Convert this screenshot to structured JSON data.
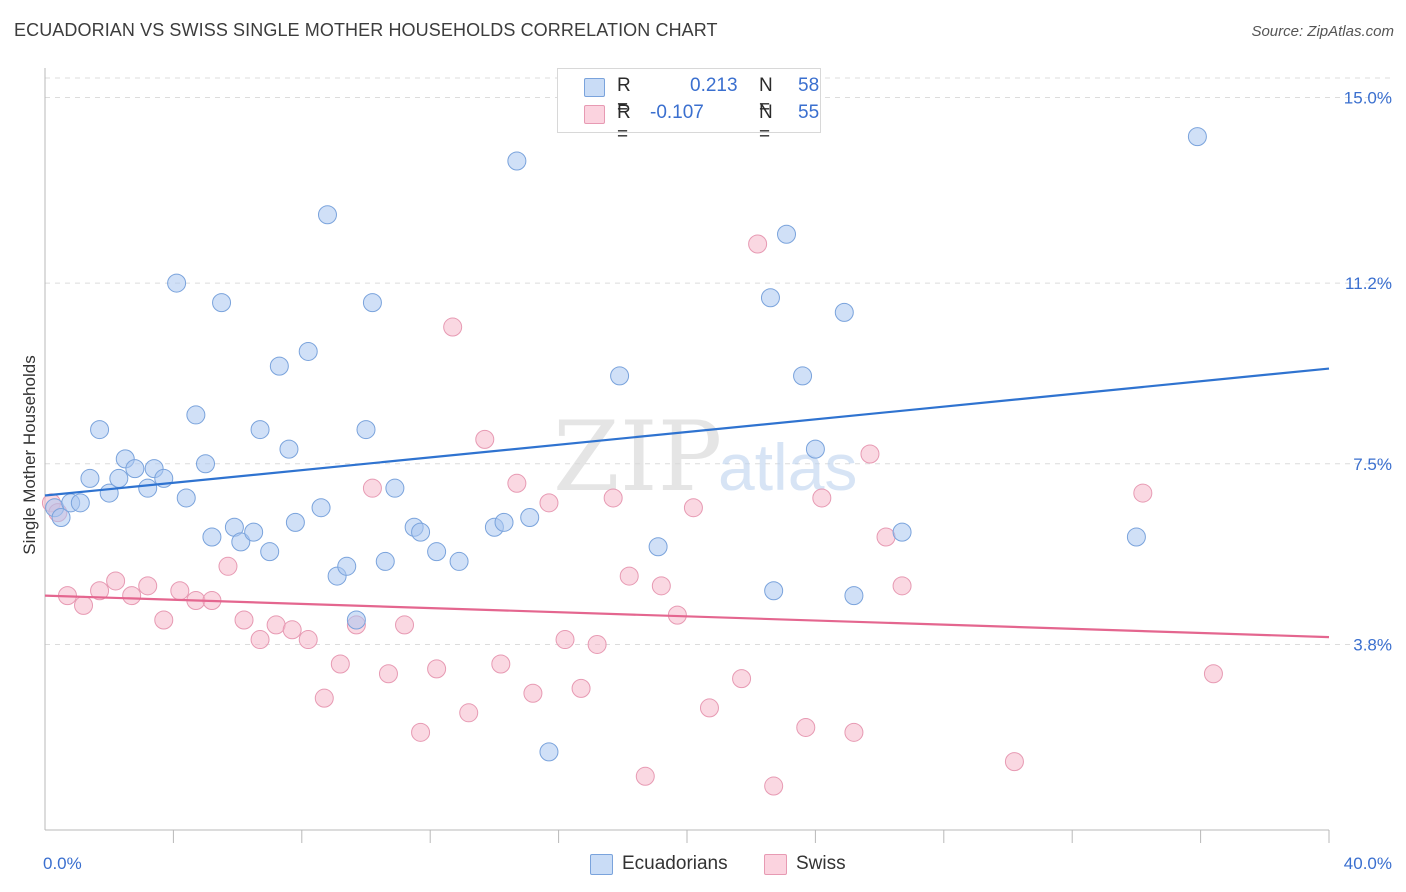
{
  "header": {
    "title": "ECUADORIAN VS SWISS SINGLE MOTHER HOUSEHOLDS CORRELATION CHART",
    "source": "Source: ZipAtlas.com"
  },
  "watermark": {
    "zip": "ZIP",
    "atlas": "atlas"
  },
  "legend": {
    "rows": [
      {
        "r_key": "R =",
        "r_val": "0.213",
        "n_key": "N =",
        "n_val": "58",
        "color": "#a9c6f0"
      },
      {
        "r_key": "R =",
        "r_val": "-0.107",
        "n_key": "N =",
        "n_val": "55",
        "color": "#f6b8cb"
      }
    ]
  },
  "bottom_legend": [
    {
      "label": "Ecuadorians",
      "color": "#a9c6f0"
    },
    {
      "label": "Swiss",
      "color": "#f6b8cb"
    }
  ],
  "colors": {
    "blue_fill": "#a9c6f0",
    "blue_stroke": "#7aa3dc",
    "blue_line": "#2f73d0",
    "pink_fill": "#f6b8cb",
    "pink_stroke": "#e79ab3",
    "pink_line": "#e4668f",
    "tick_text": "#3a6fcf",
    "grid": "#dcdcdc"
  },
  "chart_data": {
    "type": "scatter",
    "title": "ECUADORIAN VS SWISS SINGLE MOTHER HOUSEHOLDS CORRELATION CHART",
    "xlabel": "",
    "ylabel": "Single Mother Households",
    "xlim": [
      0,
      40
    ],
    "ylim": [
      0,
      15.4
    ],
    "x_tick_labels": [
      "0.0%",
      "40.0%"
    ],
    "y_ticks": [
      {
        "value": 3.8,
        "label": "3.8%"
      },
      {
        "value": 7.5,
        "label": "7.5%"
      },
      {
        "value": 11.2,
        "label": "11.2%"
      },
      {
        "value": 15.0,
        "label": "15.0%"
      }
    ],
    "series": [
      {
        "name": "Ecuadorians",
        "r": 0.213,
        "n": 58,
        "trend": {
          "x": [
            0,
            40
          ],
          "y": [
            6.85,
            9.45
          ]
        },
        "points": [
          [
            0.3,
            6.6
          ],
          [
            0.5,
            6.4
          ],
          [
            0.8,
            6.7
          ],
          [
            1.1,
            6.7
          ],
          [
            1.4,
            7.2
          ],
          [
            1.7,
            8.2
          ],
          [
            2.0,
            6.9
          ],
          [
            2.3,
            7.2
          ],
          [
            2.5,
            7.6
          ],
          [
            2.8,
            7.4
          ],
          [
            3.2,
            7.0
          ],
          [
            3.4,
            7.4
          ],
          [
            3.7,
            7.2
          ],
          [
            4.1,
            11.2
          ],
          [
            4.4,
            6.8
          ],
          [
            4.7,
            8.5
          ],
          [
            5.0,
            7.5
          ],
          [
            5.2,
            6.0
          ],
          [
            5.5,
            10.8
          ],
          [
            5.9,
            6.2
          ],
          [
            6.1,
            5.9
          ],
          [
            6.5,
            6.1
          ],
          [
            6.7,
            8.2
          ],
          [
            7.0,
            5.7
          ],
          [
            7.3,
            9.5
          ],
          [
            7.6,
            7.8
          ],
          [
            7.8,
            6.3
          ],
          [
            8.2,
            9.8
          ],
          [
            8.6,
            6.6
          ],
          [
            8.8,
            12.6
          ],
          [
            9.1,
            5.2
          ],
          [
            9.4,
            5.4
          ],
          [
            9.7,
            4.3
          ],
          [
            10.0,
            8.2
          ],
          [
            10.2,
            10.8
          ],
          [
            10.6,
            5.5
          ],
          [
            10.9,
            7.0
          ],
          [
            11.5,
            6.2
          ],
          [
            11.7,
            6.1
          ],
          [
            12.2,
            5.7
          ],
          [
            12.9,
            5.5
          ],
          [
            14.0,
            6.2
          ],
          [
            14.3,
            6.3
          ],
          [
            14.7,
            13.7
          ],
          [
            15.1,
            6.4
          ],
          [
            15.7,
            1.6
          ],
          [
            17.9,
            9.3
          ],
          [
            19.1,
            5.8
          ],
          [
            22.6,
            10.9
          ],
          [
            22.7,
            4.9
          ],
          [
            23.1,
            12.2
          ],
          [
            23.6,
            9.3
          ],
          [
            24.0,
            7.8
          ],
          [
            24.9,
            10.6
          ],
          [
            25.2,
            4.8
          ],
          [
            26.7,
            6.1
          ],
          [
            35.9,
            14.2
          ],
          [
            34.0,
            6.0
          ]
        ]
      },
      {
        "name": "Swiss",
        "r": -0.107,
        "n": 55,
        "trend": {
          "x": [
            0,
            40
          ],
          "y": [
            4.8,
            3.95
          ]
        },
        "points": [
          [
            0.2,
            6.7
          ],
          [
            0.4,
            6.5
          ],
          [
            0.7,
            4.8
          ],
          [
            1.2,
            4.6
          ],
          [
            1.7,
            4.9
          ],
          [
            2.2,
            5.1
          ],
          [
            2.7,
            4.8
          ],
          [
            3.2,
            5.0
          ],
          [
            3.7,
            4.3
          ],
          [
            4.2,
            4.9
          ],
          [
            4.7,
            4.7
          ],
          [
            5.2,
            4.7
          ],
          [
            5.7,
            5.4
          ],
          [
            6.2,
            4.3
          ],
          [
            6.7,
            3.9
          ],
          [
            7.2,
            4.2
          ],
          [
            7.7,
            4.1
          ],
          [
            8.2,
            3.9
          ],
          [
            8.7,
            2.7
          ],
          [
            9.2,
            3.4
          ],
          [
            9.7,
            4.2
          ],
          [
            10.2,
            7.0
          ],
          [
            10.7,
            3.2
          ],
          [
            11.2,
            4.2
          ],
          [
            11.7,
            2.0
          ],
          [
            12.2,
            3.3
          ],
          [
            12.7,
            10.3
          ],
          [
            13.2,
            2.4
          ],
          [
            13.7,
            8.0
          ],
          [
            14.2,
            3.4
          ],
          [
            14.7,
            7.1
          ],
          [
            15.2,
            2.8
          ],
          [
            15.7,
            6.7
          ],
          [
            16.2,
            3.9
          ],
          [
            16.7,
            2.9
          ],
          [
            17.2,
            3.8
          ],
          [
            17.7,
            6.8
          ],
          [
            18.2,
            5.2
          ],
          [
            18.7,
            1.1
          ],
          [
            19.2,
            5.0
          ],
          [
            19.7,
            4.4
          ],
          [
            20.2,
            6.6
          ],
          [
            20.7,
            2.5
          ],
          [
            21.7,
            3.1
          ],
          [
            22.2,
            12.0
          ],
          [
            22.7,
            0.9
          ],
          [
            23.7,
            2.1
          ],
          [
            24.2,
            6.8
          ],
          [
            25.2,
            2.0
          ],
          [
            25.7,
            7.7
          ],
          [
            26.2,
            6.0
          ],
          [
            26.7,
            5.0
          ],
          [
            30.2,
            1.4
          ],
          [
            34.2,
            6.9
          ],
          [
            36.4,
            3.2
          ]
        ]
      }
    ]
  }
}
